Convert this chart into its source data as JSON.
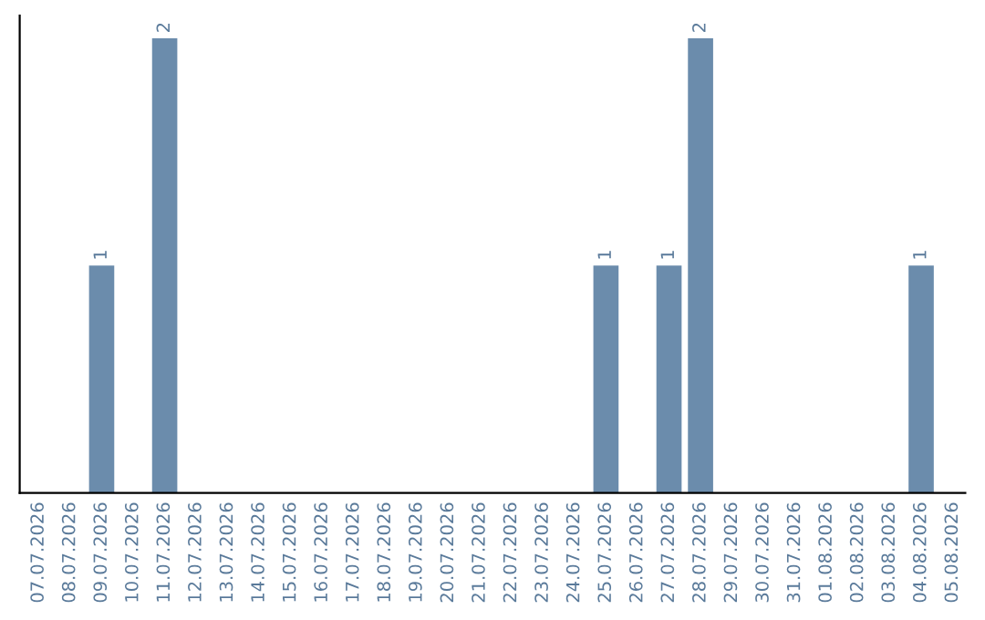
{
  "chart_data": {
    "type": "bar",
    "categories": [
      "07.07.2026",
      "08.07.2026",
      "09.07.2026",
      "10.07.2026",
      "11.07.2026",
      "12.07.2026",
      "13.07.2026",
      "14.07.2026",
      "15.07.2026",
      "16.07.2026",
      "17.07.2026",
      "18.07.2026",
      "19.07.2026",
      "20.07.2026",
      "21.07.2026",
      "22.07.2026",
      "23.07.2026",
      "24.07.2026",
      "25.07.2026",
      "26.07.2026",
      "27.07.2026",
      "28.07.2026",
      "29.07.2026",
      "30.07.2026",
      "31.07.2026",
      "01.08.2026",
      "02.08.2026",
      "03.08.2026",
      "04.08.2026",
      "05.08.2026"
    ],
    "values": [
      0,
      0,
      1,
      0,
      2,
      0,
      0,
      0,
      0,
      0,
      0,
      0,
      0,
      0,
      0,
      0,
      0,
      0,
      1,
      0,
      1,
      2,
      0,
      0,
      0,
      0,
      0,
      0,
      1,
      0
    ],
    "value_labels": [
      null,
      null,
      "1",
      null,
      "2",
      null,
      null,
      null,
      null,
      null,
      null,
      null,
      null,
      null,
      null,
      null,
      null,
      null,
      "1",
      null,
      "1",
      "2",
      null,
      null,
      null,
      null,
      null,
      null,
      "1",
      null
    ],
    "color": "#6b8cac",
    "tick_labels": "x",
    "grid": false
  }
}
